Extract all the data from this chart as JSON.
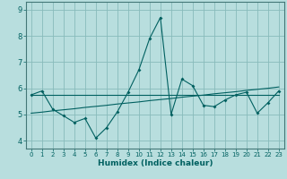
{
  "xlabel": "Humidex (Indice chaleur)",
  "bg_color": "#b8dede",
  "grid_color": "#88bbbb",
  "line_color": "#006060",
  "spine_color": "#447777",
  "xlim": [
    -0.5,
    23.5
  ],
  "ylim": [
    3.7,
    9.3
  ],
  "x_ticks": [
    0,
    1,
    2,
    3,
    4,
    5,
    6,
    7,
    8,
    9,
    10,
    11,
    12,
    13,
    14,
    15,
    16,
    17,
    18,
    19,
    20,
    21,
    22,
    23
  ],
  "y_ticks": [
    4,
    5,
    6,
    7,
    8,
    9
  ],
  "data_x": [
    0,
    1,
    2,
    3,
    4,
    5,
    6,
    7,
    8,
    9,
    10,
    11,
    12,
    13,
    14,
    15,
    16,
    17,
    18,
    19,
    20,
    21,
    22,
    23
  ],
  "main_y": [
    5.75,
    5.9,
    5.2,
    4.95,
    4.7,
    4.85,
    4.1,
    4.5,
    5.1,
    5.85,
    6.7,
    7.9,
    8.7,
    5.0,
    6.35,
    6.1,
    5.35,
    5.3,
    5.55,
    5.75,
    5.85,
    5.05,
    5.45,
    5.9
  ],
  "trend_flat_y": [
    5.75,
    5.75,
    5.75,
    5.75,
    5.75,
    5.75,
    5.75,
    5.75,
    5.75,
    5.75,
    5.75,
    5.75,
    5.75,
    5.75,
    5.75,
    5.75,
    5.75,
    5.75,
    5.75,
    5.75,
    5.75,
    5.75,
    5.75,
    5.75
  ],
  "trend_rise_y": [
    5.05,
    5.09,
    5.14,
    5.18,
    5.22,
    5.27,
    5.31,
    5.35,
    5.4,
    5.44,
    5.48,
    5.53,
    5.57,
    5.61,
    5.66,
    5.7,
    5.74,
    5.79,
    5.83,
    5.87,
    5.92,
    5.96,
    6.0,
    6.05
  ]
}
